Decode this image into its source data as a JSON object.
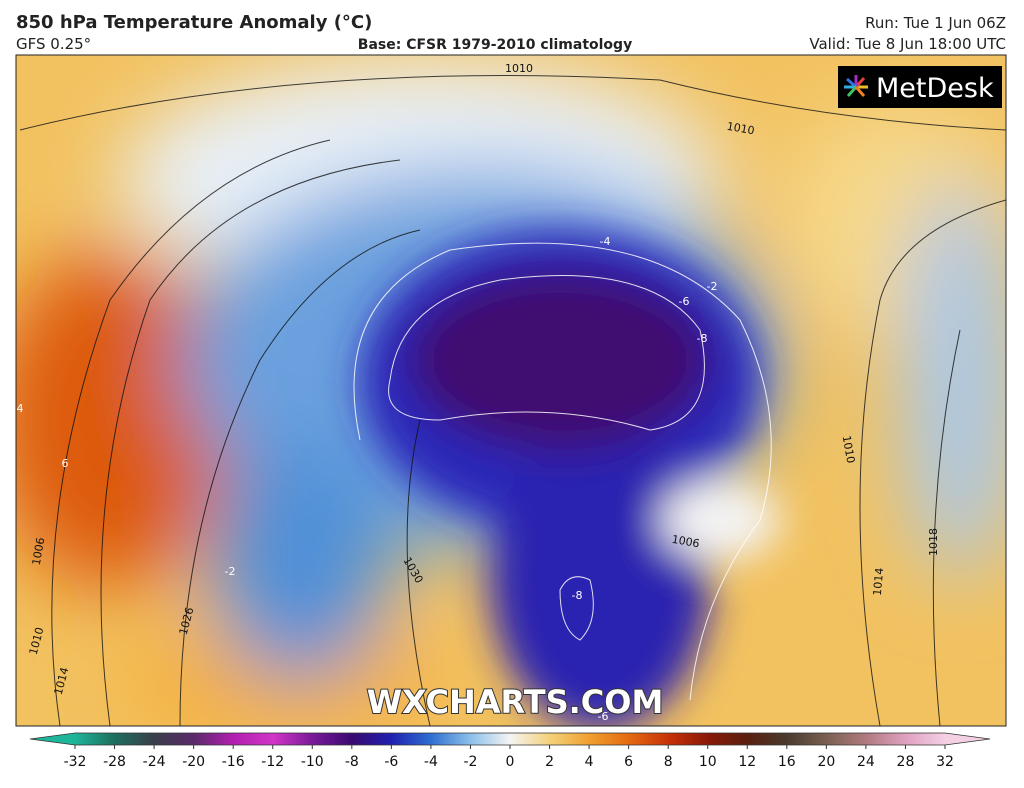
{
  "header": {
    "title": "850 hPa Temperature Anomaly (°C)",
    "model": "GFS 0.25°",
    "base": "Base: CFSR 1979-2010 climatology",
    "run": "Run: Tue 1 Jun 06Z",
    "valid": "Valid: Tue 8 Jun 18:00 UTC"
  },
  "logo": "MetDesk",
  "watermark": "WXCHARTS.COM",
  "contour_labels": [
    "1010",
    "1010",
    "-8",
    "-6",
    "-4",
    "-2",
    "1030",
    "1026",
    "1014",
    "1010",
    "1006",
    "1010",
    "1014",
    "1018",
    "1006",
    "-8",
    "6",
    "4",
    "-2",
    "-6"
  ],
  "colorbar": {
    "ticks": [
      -32,
      -28,
      -24,
      -20,
      -16,
      -12,
      -10,
      -8,
      -6,
      -4,
      -2,
      0,
      2,
      4,
      6,
      8,
      10,
      12,
      16,
      20,
      24,
      28,
      32
    ],
    "colors": [
      "#1fb59a",
      "#1e6e5e",
      "#3a3f4a",
      "#5a2a6a",
      "#b21fb0",
      "#d235c8",
      "#7a1a9a",
      "#3a0a70",
      "#2020b0",
      "#2f6fd0",
      "#8cc0ea",
      "#f4f4f4",
      "#f4d27a",
      "#f0a030",
      "#e46a10",
      "#c83208",
      "#8a1808",
      "#5a2010",
      "#4a3a30",
      "#7a6050",
      "#b07a80",
      "#e0a0c0",
      "#f4d0e4"
    ]
  }
}
